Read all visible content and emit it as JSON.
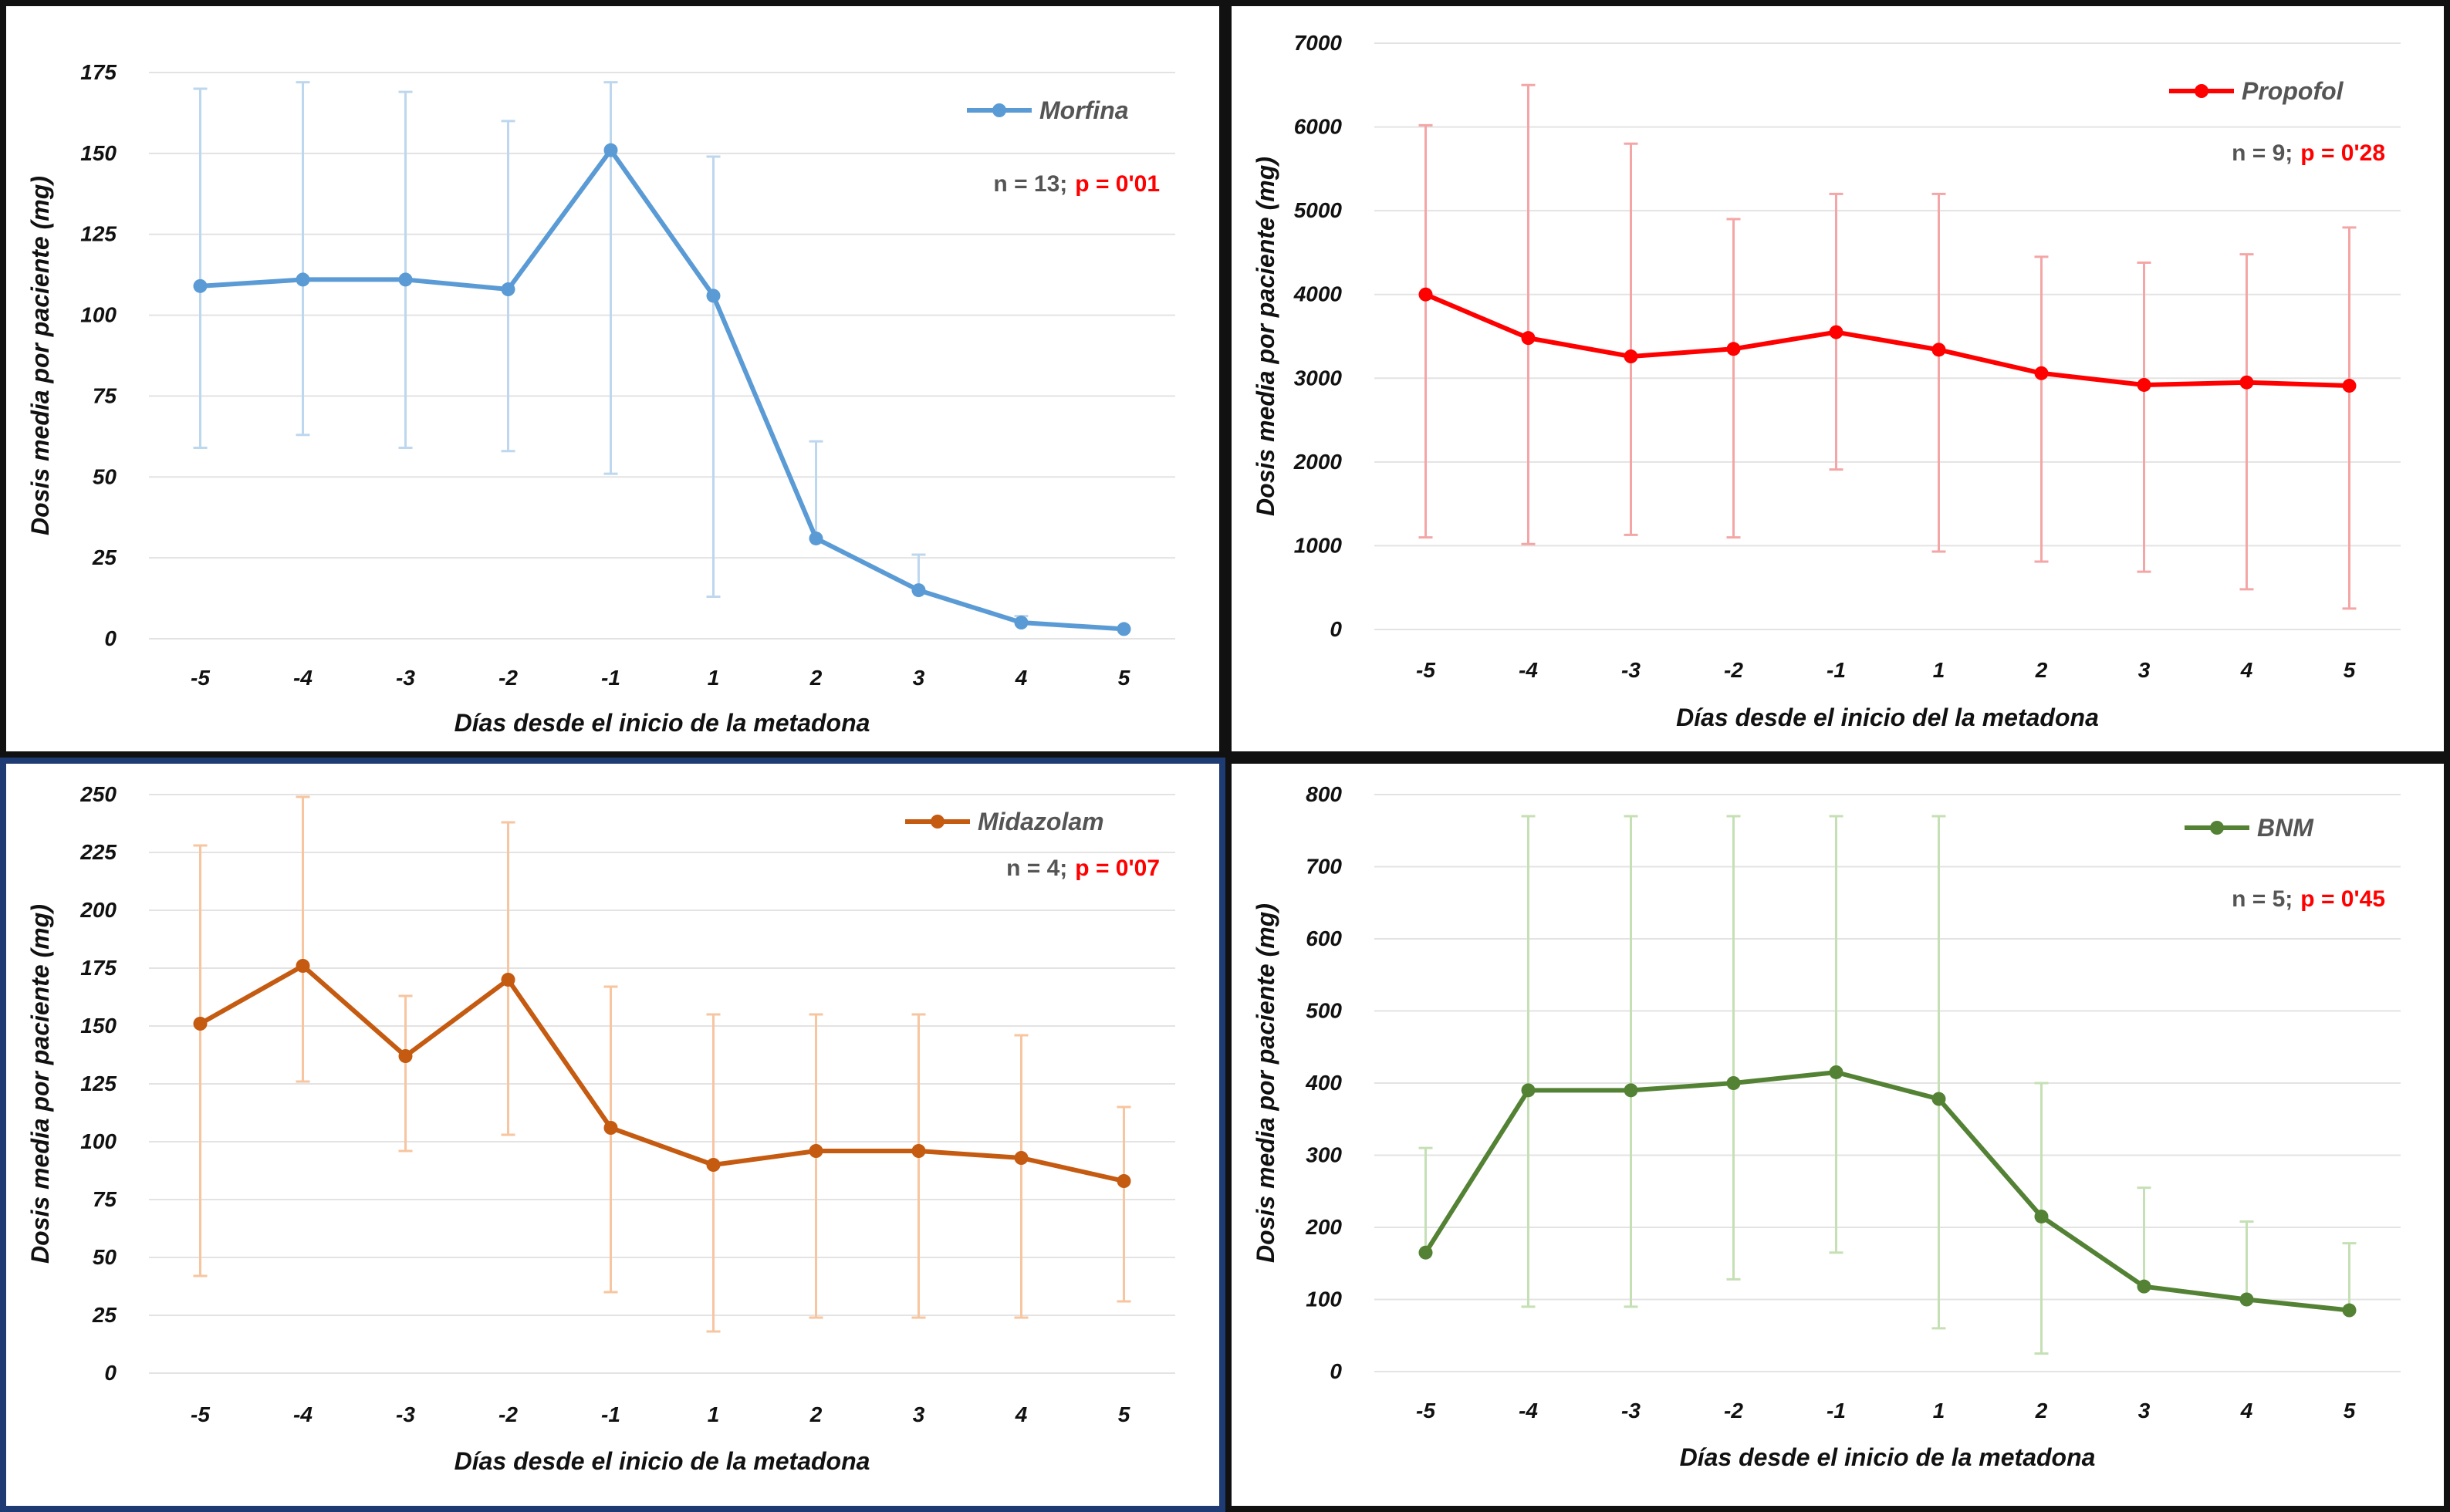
{
  "chart_data": [
    {
      "type": "line",
      "x": [
        "-5",
        "-4",
        "-3",
        "-2",
        "-1",
        "1",
        "2",
        "3",
        "4",
        "5"
      ],
      "series": [
        {
          "name": "Morfina",
          "values": [
            109,
            111,
            111,
            108,
            151,
            106,
            31,
            15,
            5,
            3
          ],
          "error_upper": [
            170,
            172,
            169,
            160,
            172,
            149,
            61,
            26,
            7,
            3
          ],
          "error_lower": [
            59,
            63,
            59,
            58,
            51,
            13,
            31,
            15,
            5,
            3
          ]
        }
      ],
      "xlabel": "Días desde el inicio de la metadona",
      "ylabel": "Dosis media por paciente (mg)",
      "ylim": [
        0,
        175
      ],
      "yticks": [
        "0",
        "25",
        "50",
        "75",
        "100",
        "125",
        "150",
        "175"
      ],
      "grid": true,
      "legend": "top-right",
      "annotation": {
        "n": "n = 13;",
        "p": "p = 0'01"
      },
      "color": "#5b9bd5",
      "error_color": "#bdd7ee"
    },
    {
      "type": "line",
      "x": [
        "-5",
        "-4",
        "-3",
        "-2",
        "-1",
        "1",
        "2",
        "3",
        "4",
        "5"
      ],
      "series": [
        {
          "name": "Propofol",
          "values": [
            4000,
            3480,
            3260,
            3350,
            3550,
            3340,
            3060,
            2920,
            2950,
            2910
          ],
          "error_upper": [
            6020,
            6500,
            5800,
            4900,
            5200,
            5200,
            4450,
            4380,
            4480,
            4800
          ],
          "error_lower": [
            1100,
            1020,
            1130,
            1100,
            1910,
            930,
            810,
            690,
            480,
            250
          ]
        }
      ],
      "xlabel": "Días desde el inicio del la metadona",
      "ylabel": "Dosis media por paciente (mg)",
      "ylim": [
        0,
        7000
      ],
      "yticks": [
        "0",
        "1000",
        "2000",
        "3000",
        "4000",
        "5000",
        "6000",
        "7000"
      ],
      "grid": true,
      "legend": "top-right",
      "annotation": {
        "n": "n = 9;",
        "p": "p = 0'28"
      },
      "color": "#ff0000",
      "error_color": "#f4a6a6"
    },
    {
      "type": "line",
      "x": [
        "-5",
        "-4",
        "-3",
        "-2",
        "-1",
        "1",
        "2",
        "3",
        "4",
        "5"
      ],
      "series": [
        {
          "name": "Midazolam",
          "values": [
            151,
            176,
            137,
            170,
            106,
            90,
            96,
            96,
            93,
            83
          ],
          "error_upper": [
            228,
            249,
            163,
            238,
            167,
            155,
            155,
            155,
            146,
            115
          ],
          "error_lower": [
            42,
            126,
            96,
            103,
            35,
            18,
            24,
            24,
            24,
            31
          ]
        }
      ],
      "xlabel": "Días desde el inicio de la metadona",
      "ylabel": "Dosis media por paciente (mg)",
      "ylim": [
        0,
        250
      ],
      "yticks": [
        "0",
        "25",
        "50",
        "75",
        "100",
        "125",
        "150",
        "175",
        "200",
        "225",
        "250"
      ],
      "grid": true,
      "legend": "top-right",
      "annotation": {
        "n": "n = 4;",
        "p": "p = 0'07"
      },
      "color": "#c55a11",
      "error_color": "#f7c59f"
    },
    {
      "type": "line",
      "x": [
        "-5",
        "-4",
        "-3",
        "-2",
        "-1",
        "1",
        "2",
        "3",
        "4",
        "5"
      ],
      "series": [
        {
          "name": "BNM",
          "values": [
            165,
            390,
            390,
            400,
            415,
            378,
            215,
            118,
            100,
            85
          ],
          "error_upper": [
            310,
            770,
            770,
            770,
            770,
            770,
            400,
            255,
            208,
            178
          ],
          "error_lower": [
            165,
            90,
            90,
            128,
            165,
            60,
            25,
            118,
            100,
            85
          ]
        }
      ],
      "xlabel": "Días desde el inicio de la metadona",
      "ylabel": "Dosis media por paciente (mg)",
      "ylim": [
        0,
        800
      ],
      "yticks": [
        "0",
        "100",
        "200",
        "300",
        "400",
        "500",
        "600",
        "700",
        "800"
      ],
      "grid": true,
      "legend": "top-right",
      "annotation": {
        "n": "n = 5;",
        "p": "p = 0'45"
      },
      "color": "#548235",
      "error_color": "#c5e0b4"
    }
  ]
}
